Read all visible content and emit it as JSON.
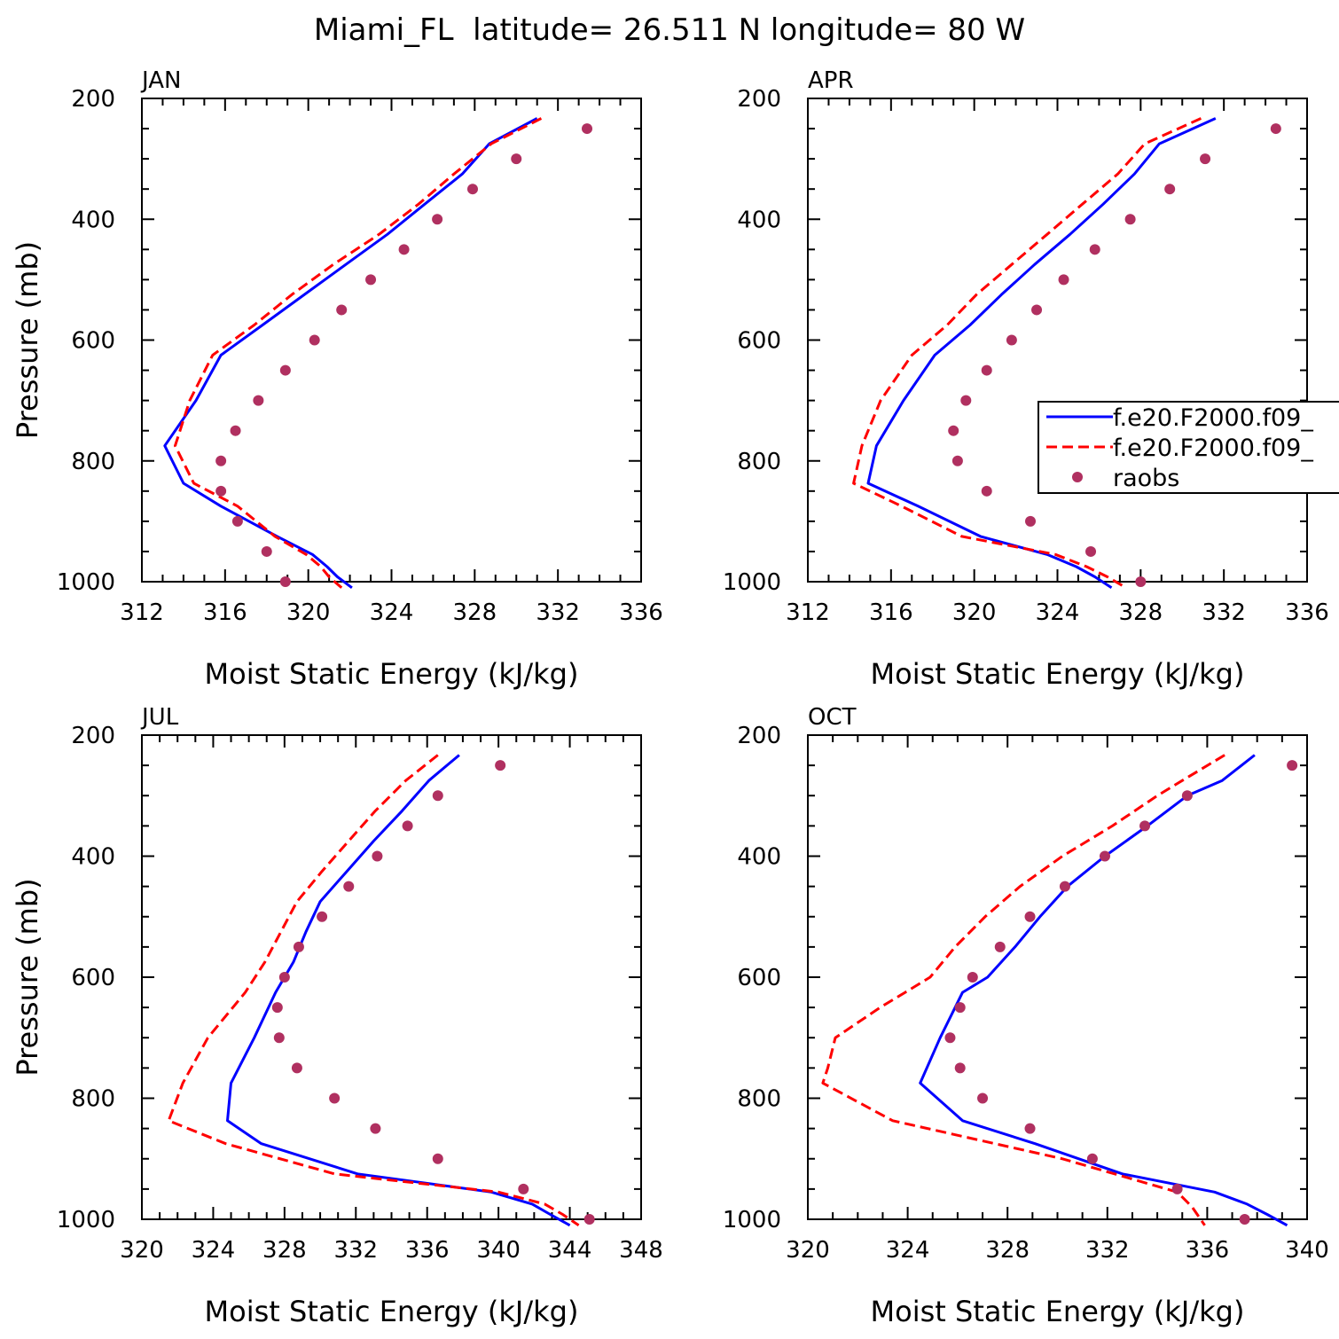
{
  "title": "Miami_FL  latitude= 26.511 N longitude= 80 W",
  "colors": {
    "model_a": "#0000ff",
    "model_b": "#ff0000",
    "raobs": "#b03060"
  },
  "legend": {
    "placement": "panel APR, middle-right",
    "entries": [
      {
        "label": "f.e20.F2000.f09_",
        "style": "solid",
        "color": "#0000ff"
      },
      {
        "label": "f.e20.F2000.f09_",
        "style": "dashed",
        "color": "#ff0000"
      },
      {
        "label": "raobs",
        "style": "marker",
        "color": "#b03060"
      }
    ]
  },
  "chart_data": [
    {
      "type": "line",
      "panel": "JAN",
      "xlabel": "Moist Static Energy (kJ/kg)",
      "ylabel": "Pressure (mb)",
      "xlim": [
        312,
        336
      ],
      "ylim": [
        200,
        1000
      ],
      "y_inverted": true,
      "xticks": [
        312,
        316,
        320,
        324,
        328,
        332,
        336
      ],
      "yticks": [
        200,
        400,
        600,
        800,
        1000
      ],
      "series": [
        {
          "style": "solid",
          "color": "#0000ff",
          "x": [
            331.0,
            328.7,
            327.4,
            325.6,
            323.8,
            321.8,
            319.8,
            317.8,
            315.8,
            314.6,
            313.1,
            314.0,
            315.8,
            318.5,
            320.2,
            320.9,
            321.4,
            322.1
          ],
          "y": [
            233,
            275,
            325,
            375,
            425,
            475,
            525,
            575,
            625,
            700,
            775,
            837,
            875,
            925,
            955,
            975,
            992,
            1010
          ]
        },
        {
          "style": "dashed",
          "color": "#ff0000",
          "x": [
            331.2,
            328.8,
            327.0,
            325.3,
            323.4,
            321.2,
            319.2,
            317.4,
            315.4,
            314.3,
            313.6,
            314.5,
            316.6,
            318.4,
            319.9,
            320.6,
            321.0,
            321.6
          ],
          "y": [
            233,
            275,
            325,
            375,
            425,
            475,
            525,
            575,
            625,
            700,
            775,
            837,
            875,
            925,
            955,
            975,
            992,
            1010
          ]
        },
        {
          "style": "marker",
          "color": "#b03060",
          "x": [
            333.4,
            330.0,
            327.9,
            326.2,
            324.6,
            323.0,
            321.6,
            320.3,
            318.9,
            317.6,
            316.5,
            315.8,
            315.8,
            316.6,
            318.0,
            318.9
          ],
          "y": [
            250,
            300,
            350,
            400,
            450,
            500,
            550,
            600,
            650,
            700,
            750,
            800,
            850,
            900,
            950,
            1000
          ]
        }
      ]
    },
    {
      "type": "line",
      "panel": "APR",
      "xlabel": "Moist Static Energy (kJ/kg)",
      "ylabel": "",
      "xlim": [
        312,
        336
      ],
      "ylim": [
        200,
        1000
      ],
      "y_inverted": true,
      "xticks": [
        312,
        316,
        320,
        324,
        328,
        332,
        336
      ],
      "yticks": [
        200,
        400,
        600,
        800,
        1000
      ],
      "series": [
        {
          "style": "solid",
          "color": "#0000ff",
          "x": [
            331.6,
            328.9,
            327.7,
            326.2,
            324.6,
            322.9,
            321.3,
            319.8,
            318.1,
            316.6,
            315.3,
            314.9,
            317.3,
            320.3,
            323.5,
            324.9,
            325.8,
            326.6
          ],
          "y": [
            233,
            275,
            325,
            375,
            425,
            475,
            525,
            575,
            625,
            700,
            775,
            837,
            875,
            925,
            955,
            975,
            992,
            1010
          ]
        },
        {
          "style": "dashed",
          "color": "#ff0000",
          "x": [
            330.9,
            328.2,
            326.9,
            325.2,
            323.5,
            321.8,
            320.1,
            318.7,
            317.0,
            315.5,
            314.6,
            314.2,
            316.5,
            319.4,
            323.9,
            325.4,
            326.4,
            327.3
          ],
          "y": [
            233,
            275,
            325,
            375,
            425,
            475,
            525,
            575,
            625,
            700,
            775,
            837,
            875,
            925,
            955,
            975,
            992,
            1010
          ]
        },
        {
          "style": "marker",
          "color": "#b03060",
          "x": [
            334.5,
            331.1,
            329.4,
            327.5,
            325.8,
            324.3,
            323.0,
            321.8,
            320.6,
            319.6,
            319.0,
            319.2,
            320.6,
            322.7,
            325.6,
            328.0
          ],
          "y": [
            250,
            300,
            350,
            400,
            450,
            500,
            550,
            600,
            650,
            700,
            750,
            800,
            850,
            900,
            950,
            1000
          ]
        }
      ]
    },
    {
      "type": "line",
      "panel": "JUL",
      "xlabel": "Moist Static Energy (kJ/kg)",
      "ylabel": "Pressure (mb)",
      "xlim": [
        320,
        348
      ],
      "ylim": [
        200,
        1000
      ],
      "y_inverted": true,
      "xticks": [
        320,
        324,
        328,
        332,
        336,
        340,
        344,
        348
      ],
      "yticks": [
        200,
        400,
        600,
        800,
        1000
      ],
      "series": [
        {
          "style": "solid",
          "color": "#0000ff",
          "x": [
            337.8,
            336.1,
            334.6,
            333.0,
            331.5,
            330.0,
            329.2,
            328.5,
            327.5,
            326.3,
            325.0,
            324.8,
            326.7,
            332.1,
            339.6,
            341.9,
            342.9,
            344.0
          ],
          "y": [
            233,
            275,
            325,
            375,
            425,
            475,
            525,
            575,
            625,
            700,
            775,
            837,
            875,
            925,
            955,
            975,
            992,
            1010
          ]
        },
        {
          "style": "dashed",
          "color": "#ff0000",
          "x": [
            336.6,
            334.8,
            333.1,
            331.6,
            330.1,
            328.7,
            327.8,
            326.9,
            325.8,
            323.7,
            322.3,
            321.5,
            324.7,
            330.8,
            340.0,
            342.6,
            343.6,
            344.5
          ],
          "y": [
            233,
            275,
            325,
            375,
            425,
            475,
            525,
            575,
            625,
            700,
            775,
            837,
            875,
            925,
            955,
            975,
            992,
            1010
          ]
        },
        {
          "style": "marker",
          "color": "#b03060",
          "x": [
            340.1,
            336.6,
            334.9,
            333.2,
            331.6,
            330.1,
            328.8,
            328.0,
            327.6,
            327.7,
            328.7,
            330.8,
            333.1,
            336.6,
            341.4,
            345.1
          ],
          "y": [
            250,
            300,
            350,
            400,
            450,
            500,
            550,
            600,
            650,
            700,
            750,
            800,
            850,
            900,
            950,
            1000
          ]
        }
      ]
    },
    {
      "type": "line",
      "panel": "OCT",
      "xlabel": "Moist Static Energy (kJ/kg)",
      "ylabel": "",
      "xlim": [
        320,
        340
      ],
      "ylim": [
        200,
        1000
      ],
      "y_inverted": true,
      "xticks": [
        320,
        324,
        328,
        332,
        336,
        340
      ],
      "yticks": [
        200,
        400,
        600,
        800,
        1000
      ],
      "series": [
        {
          "style": "solid",
          "color": "#0000ff",
          "x": [
            337.9,
            336.6,
            335.2,
            333.6,
            331.9,
            330.4,
            329.3,
            328.3,
            327.2,
            326.2,
            325.3,
            324.5,
            326.2,
            329.1,
            332.6,
            336.3,
            337.6,
            338.4,
            339.2
          ],
          "y": [
            233,
            275,
            300,
            350,
            400,
            450,
            500,
            550,
            600,
            625,
            700,
            775,
            837,
            875,
            925,
            955,
            975,
            992,
            1010
          ]
        },
        {
          "style": "dashed",
          "color": "#ff0000",
          "x": [
            336.7,
            335.0,
            334.0,
            332.2,
            330.2,
            328.5,
            327.1,
            325.9,
            324.9,
            323.9,
            322.9,
            321.1,
            320.8,
            320.6,
            323.4,
            330.2,
            334.8,
            335.4,
            335.9
          ],
          "y": [
            233,
            275,
            300,
            350,
            400,
            450,
            500,
            550,
            600,
            625,
            650,
            700,
            750,
            775,
            837,
            900,
            955,
            980,
            1010
          ]
        },
        {
          "style": "marker",
          "color": "#b03060",
          "x": [
            339.4,
            335.2,
            333.5,
            331.9,
            330.3,
            328.9,
            327.7,
            326.6,
            326.1,
            325.7,
            326.1,
            327.0,
            328.9,
            331.4,
            334.8,
            337.5
          ],
          "y": [
            250,
            300,
            350,
            400,
            450,
            500,
            550,
            600,
            650,
            700,
            750,
            800,
            850,
            900,
            950,
            1000
          ]
        }
      ]
    }
  ]
}
